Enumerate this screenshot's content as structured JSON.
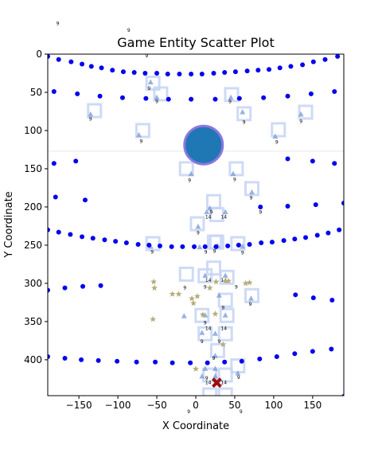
{
  "chart_data": {
    "type": "scatter",
    "title": "Game Entity Scatter Plot",
    "xlabel": "X Coordinate",
    "ylabel": "Y Coordinate",
    "xlim": [
      -190,
      190
    ],
    "ylim": [
      447,
      0
    ],
    "y_inverted": true,
    "grid": false,
    "x_ticks": [
      -150,
      -100,
      -50,
      0,
      50,
      100,
      150
    ],
    "y_ticks": [
      0,
      50,
      100,
      150,
      200,
      250,
      300,
      350,
      400
    ],
    "colors": {
      "dots": "#0000ee",
      "stars": "#b5ad7a",
      "cells": "#c6d3f5",
      "triangles": "#7f9fd6",
      "player_fill": "#1f77b4",
      "player_ring": "#8a78e0",
      "target": "#9b0d0d",
      "divider": "#e6e6e6"
    },
    "series": [
      {
        "kind": "dots",
        "points": [
          [
            -190,
            3
          ],
          [
            -176,
            7
          ],
          [
            -160,
            10
          ],
          [
            -146,
            13
          ],
          [
            -134,
            16
          ],
          [
            -121,
            18
          ],
          [
            -107,
            21
          ],
          [
            -93,
            23
          ],
          [
            -79,
            24
          ],
          [
            -65,
            25
          ],
          [
            -50,
            25
          ],
          [
            -36,
            26
          ],
          [
            -21,
            26
          ],
          [
            -6,
            26
          ],
          [
            8,
            26
          ],
          [
            23,
            25
          ],
          [
            37,
            24
          ],
          [
            51,
            23
          ],
          [
            66,
            22
          ],
          [
            80,
            21
          ],
          [
            94,
            20
          ],
          [
            108,
            18
          ],
          [
            122,
            16
          ],
          [
            137,
            14
          ],
          [
            151,
            10
          ],
          [
            166,
            7
          ],
          [
            182,
            3
          ],
          [
            -182,
            49
          ],
          [
            -152,
            52
          ],
          [
            -123,
            55
          ],
          [
            -94,
            57
          ],
          [
            -64,
            58
          ],
          [
            -35,
            59
          ],
          [
            -6,
            59
          ],
          [
            25,
            59
          ],
          [
            56,
            58
          ],
          [
            87,
            57
          ],
          [
            118,
            55
          ],
          [
            148,
            52
          ],
          [
            178,
            49
          ],
          [
            -182,
            143
          ],
          [
            -154,
            140
          ],
          [
            118,
            137
          ],
          [
            150,
            140
          ],
          [
            178,
            143
          ],
          [
            -180,
            187
          ],
          [
            -142,
            191
          ],
          [
            83,
            200
          ],
          [
            118,
            199
          ],
          [
            154,
            197
          ],
          [
            190,
            195
          ],
          [
            -190,
            230
          ],
          [
            -176,
            233
          ],
          [
            -161,
            236
          ],
          [
            -146,
            239
          ],
          [
            -132,
            241
          ],
          [
            -117,
            243
          ],
          [
            -103,
            245
          ],
          [
            -89,
            247
          ],
          [
            -74,
            249
          ],
          [
            -60,
            250
          ],
          [
            -46,
            251
          ],
          [
            -31,
            252
          ],
          [
            -17,
            252
          ],
          [
            -2,
            252
          ],
          [
            12,
            252
          ],
          [
            26,
            252
          ],
          [
            41,
            251
          ],
          [
            55,
            250
          ],
          [
            69,
            249
          ],
          [
            84,
            247
          ],
          [
            98,
            246
          ],
          [
            113,
            244
          ],
          [
            127,
            242
          ],
          [
            141,
            240
          ],
          [
            156,
            237
          ],
          [
            170,
            234
          ],
          [
            184,
            230
          ],
          [
            -190,
            309
          ],
          [
            -168,
            306
          ],
          [
            -145,
            304
          ],
          [
            -122,
            303
          ],
          [
            128,
            315
          ],
          [
            151,
            319
          ],
          [
            175,
            322
          ],
          [
            -190,
            396
          ],
          [
            -168,
            398
          ],
          [
            -147,
            400
          ],
          [
            -125,
            401
          ],
          [
            -101,
            402
          ],
          [
            -76,
            403
          ],
          [
            -52,
            403
          ],
          [
            -30,
            404
          ],
          [
            -7,
            404
          ],
          [
            15,
            404
          ],
          [
            37,
            403
          ],
          [
            59,
            402
          ],
          [
            82,
            399
          ],
          [
            104,
            396
          ],
          [
            127,
            392
          ],
          [
            150,
            389
          ],
          [
            174,
            386
          ],
          [
            190,
            448
          ]
        ]
      },
      {
        "kind": "stars",
        "points": [
          [
            -54,
            298
          ],
          [
            -53,
            306
          ],
          [
            -30,
            314
          ],
          [
            -22,
            314
          ],
          [
            -5,
            320
          ],
          [
            -3,
            326
          ],
          [
            2,
            317
          ],
          [
            18,
            306
          ],
          [
            26,
            298
          ],
          [
            38,
            297
          ],
          [
            42,
            297
          ],
          [
            64,
            300
          ],
          [
            69,
            299
          ],
          [
            -55,
            347
          ],
          [
            9,
            341
          ],
          [
            25,
            340
          ],
          [
            35,
            380
          ],
          [
            0,
            412
          ]
        ]
      },
      {
        "kind": "triangles",
        "points": [
          [
            -135,
            79
          ],
          [
            -58,
            37
          ],
          [
            -50,
            57
          ],
          [
            45,
            57
          ],
          [
            60,
            76
          ],
          [
            135,
            79
          ],
          [
            -73,
            106
          ],
          [
            102,
            108
          ],
          [
            -6,
            157
          ],
          [
            48,
            157
          ],
          [
            72,
            181
          ],
          [
            18,
            202
          ],
          [
            14,
            207
          ],
          [
            38,
            207
          ],
          [
            3,
            226
          ],
          [
            -58,
            252
          ],
          [
            5,
            253
          ],
          [
            28,
            251
          ],
          [
            60,
            252
          ],
          [
            -15,
            343
          ],
          [
            12,
            290
          ],
          [
            38,
            290
          ],
          [
            71,
            320
          ],
          [
            12,
            342
          ],
          [
            38,
            342
          ],
          [
            30,
            316
          ],
          [
            25,
            366
          ],
          [
            8,
            365
          ],
          [
            25,
            395
          ],
          [
            12,
            412
          ],
          [
            25,
            412
          ],
          [
            54,
            418
          ],
          [
            8,
            422
          ],
          [
            25,
            422
          ]
        ]
      },
      {
        "kind": "cells",
        "points": [
          [
            -130,
            74
          ],
          [
            -55,
            38
          ],
          [
            -45,
            52
          ],
          [
            46,
            53
          ],
          [
            62,
            78
          ],
          [
            141,
            76
          ],
          [
            -68,
            100
          ],
          [
            106,
            99
          ],
          [
            -12,
            150
          ],
          [
            52,
            150
          ],
          [
            72,
            176
          ],
          [
            23,
            193
          ],
          [
            27,
            210
          ],
          [
            27,
            246
          ],
          [
            2,
            222
          ],
          [
            -55,
            248
          ],
          [
            24,
            246
          ],
          [
            23,
            280
          ],
          [
            54,
            248
          ],
          [
            -12,
            288
          ],
          [
            12,
            290
          ],
          [
            40,
            292
          ],
          [
            72,
            316
          ],
          [
            8,
            342
          ],
          [
            40,
            342
          ],
          [
            38,
            322
          ],
          [
            12,
            366
          ],
          [
            38,
            366
          ],
          [
            28,
            388
          ],
          [
            54,
            408
          ],
          [
            18,
            420
          ],
          [
            38,
            420
          ],
          [
            18,
            446
          ],
          [
            38,
            446
          ]
        ]
      },
      {
        "kind": "players",
        "points": [
          [
            10,
            119
          ]
        ]
      },
      {
        "kind": "targets",
        "points": [
          [
            27,
            430
          ]
        ]
      }
    ],
    "cell_labels": [
      {
        "x": -135,
        "y": 87,
        "text": "9"
      },
      {
        "x": -60,
        "y": 47,
        "text": "9"
      },
      {
        "x": -50,
        "y": 64,
        "text": "9"
      },
      {
        "x": 44,
        "y": 64,
        "text": "9"
      },
      {
        "x": 62,
        "y": 91,
        "text": "9"
      },
      {
        "x": 135,
        "y": 90,
        "text": "9"
      },
      {
        "x": -70,
        "y": 116,
        "text": "9"
      },
      {
        "x": 104,
        "y": 117,
        "text": "9"
      },
      {
        "x": -8,
        "y": 167,
        "text": "9"
      },
      {
        "x": 50,
        "y": 166,
        "text": "9"
      },
      {
        "x": 71,
        "y": 190,
        "text": "9"
      },
      {
        "x": 20,
        "y": 209,
        "text": "9"
      },
      {
        "x": 83,
        "y": 209,
        "text": "9"
      },
      {
        "x": 16,
        "y": 215,
        "text": "14"
      },
      {
        "x": 36,
        "y": 215,
        "text": "14"
      },
      {
        "x": 3,
        "y": 236,
        "text": "9"
      },
      {
        "x": -56,
        "y": 261,
        "text": "9"
      },
      {
        "x": 13,
        "y": 261,
        "text": "9"
      },
      {
        "x": 24,
        "y": 260,
        "text": "9"
      },
      {
        "x": 60,
        "y": 262,
        "text": "9"
      },
      {
        "x": 16,
        "y": 298,
        "text": "14"
      },
      {
        "x": 36,
        "y": 298,
        "text": "14"
      },
      {
        "x": -14,
        "y": 308,
        "text": "9"
      },
      {
        "x": 12,
        "y": 307,
        "text": "9"
      },
      {
        "x": 52,
        "y": 307,
        "text": "9"
      },
      {
        "x": 70,
        "y": 329,
        "text": "9"
      },
      {
        "x": 35,
        "y": 334,
        "text": "9"
      },
      {
        "x": 12,
        "y": 354,
        "text": "9"
      },
      {
        "x": 16,
        "y": 361,
        "text": "14"
      },
      {
        "x": 36,
        "y": 361,
        "text": "14"
      },
      {
        "x": 8,
        "y": 378,
        "text": "9"
      },
      {
        "x": 30,
        "y": 378,
        "text": "9"
      },
      {
        "x": 23,
        "y": 400,
        "text": "9"
      },
      {
        "x": 55,
        "y": 425,
        "text": "9"
      },
      {
        "x": 14,
        "y": 426,
        "text": "9"
      },
      {
        "x": 16,
        "y": 432,
        "text": "14"
      },
      {
        "x": 36,
        "y": 432,
        "text": "14"
      }
    ],
    "outside_labels": [
      {
        "x": -177,
        "y": -38,
        "text": "9"
      },
      {
        "x": -86,
        "y": -29,
        "text": "9"
      },
      {
        "x": -63,
        "y": 4,
        "text": "9"
      },
      {
        "x": -9,
        "y": 470,
        "text": "9"
      },
      {
        "x": 58,
        "y": 470,
        "text": "9"
      }
    ],
    "divider_y": 127
  }
}
